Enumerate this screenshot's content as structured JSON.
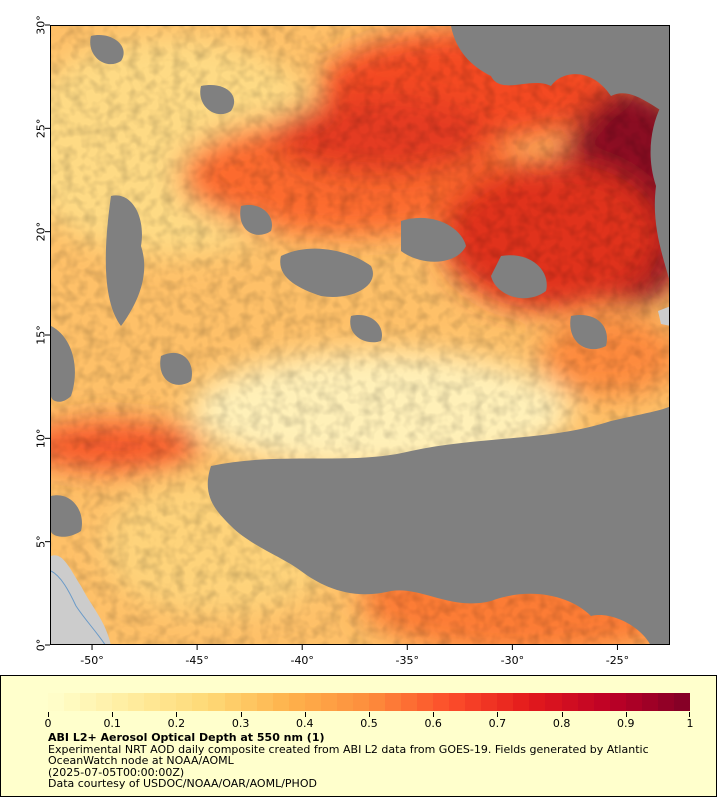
{
  "map": {
    "lon_min": -52,
    "lon_max": -22.5,
    "lat_min": 0,
    "lat_max": 30,
    "x_ticks": [
      {
        "value": -50,
        "label": "-50°"
      },
      {
        "value": -45,
        "label": "-45°"
      },
      {
        "value": -40,
        "label": "-40°"
      },
      {
        "value": -35,
        "label": "-35°"
      },
      {
        "value": -30,
        "label": "-30°"
      },
      {
        "value": -25,
        "label": "-25°"
      }
    ],
    "y_ticks": [
      {
        "value": 0,
        "label": "0°"
      },
      {
        "value": 5,
        "label": "5°"
      },
      {
        "value": 10,
        "label": "10°"
      },
      {
        "value": 15,
        "label": "15°"
      },
      {
        "value": 20,
        "label": "20°"
      },
      {
        "value": 25,
        "label": "25°"
      },
      {
        "value": 30,
        "label": "30°"
      }
    ],
    "colors": {
      "no_data": "#808080",
      "land": "#cccccc",
      "coastline": "#6a9ac8",
      "low_aod": "#ffedb3",
      "high_aod": "#800026"
    }
  },
  "colorbar": {
    "min": 0,
    "max": 1,
    "steps": 40,
    "stops": [
      "#ffffcc",
      "#ffeda0",
      "#fed976",
      "#feb24c",
      "#fd8d3c",
      "#fc4e2a",
      "#e31a1c",
      "#bd0026",
      "#800026"
    ],
    "ticks": [
      {
        "value": 0,
        "label": "0"
      },
      {
        "value": 0.1,
        "label": "0.1"
      },
      {
        "value": 0.2,
        "label": "0.2"
      },
      {
        "value": 0.3,
        "label": "0.3"
      },
      {
        "value": 0.4,
        "label": "0.4"
      },
      {
        "value": 0.5,
        "label": "0.5"
      },
      {
        "value": 0.6,
        "label": "0.6"
      },
      {
        "value": 0.7,
        "label": "0.7"
      },
      {
        "value": 0.8,
        "label": "0.8"
      },
      {
        "value": 0.9,
        "label": "0.9"
      },
      {
        "value": 1,
        "label": "1"
      }
    ]
  },
  "legend": {
    "title": "ABI L2+ Aerosol Optical Depth at 550 nm (1)",
    "description": "Experimental NRT AOD daily composite created from ABI L2 data from GOES-19. Fields generated by Atlantic OceanWatch node at NOAA/AOML",
    "timestamp": "(2025-07-05T00:00:00Z)",
    "credit": "Data courtesy of USDOC/NOAA/OAR/AOML/PHOD"
  }
}
